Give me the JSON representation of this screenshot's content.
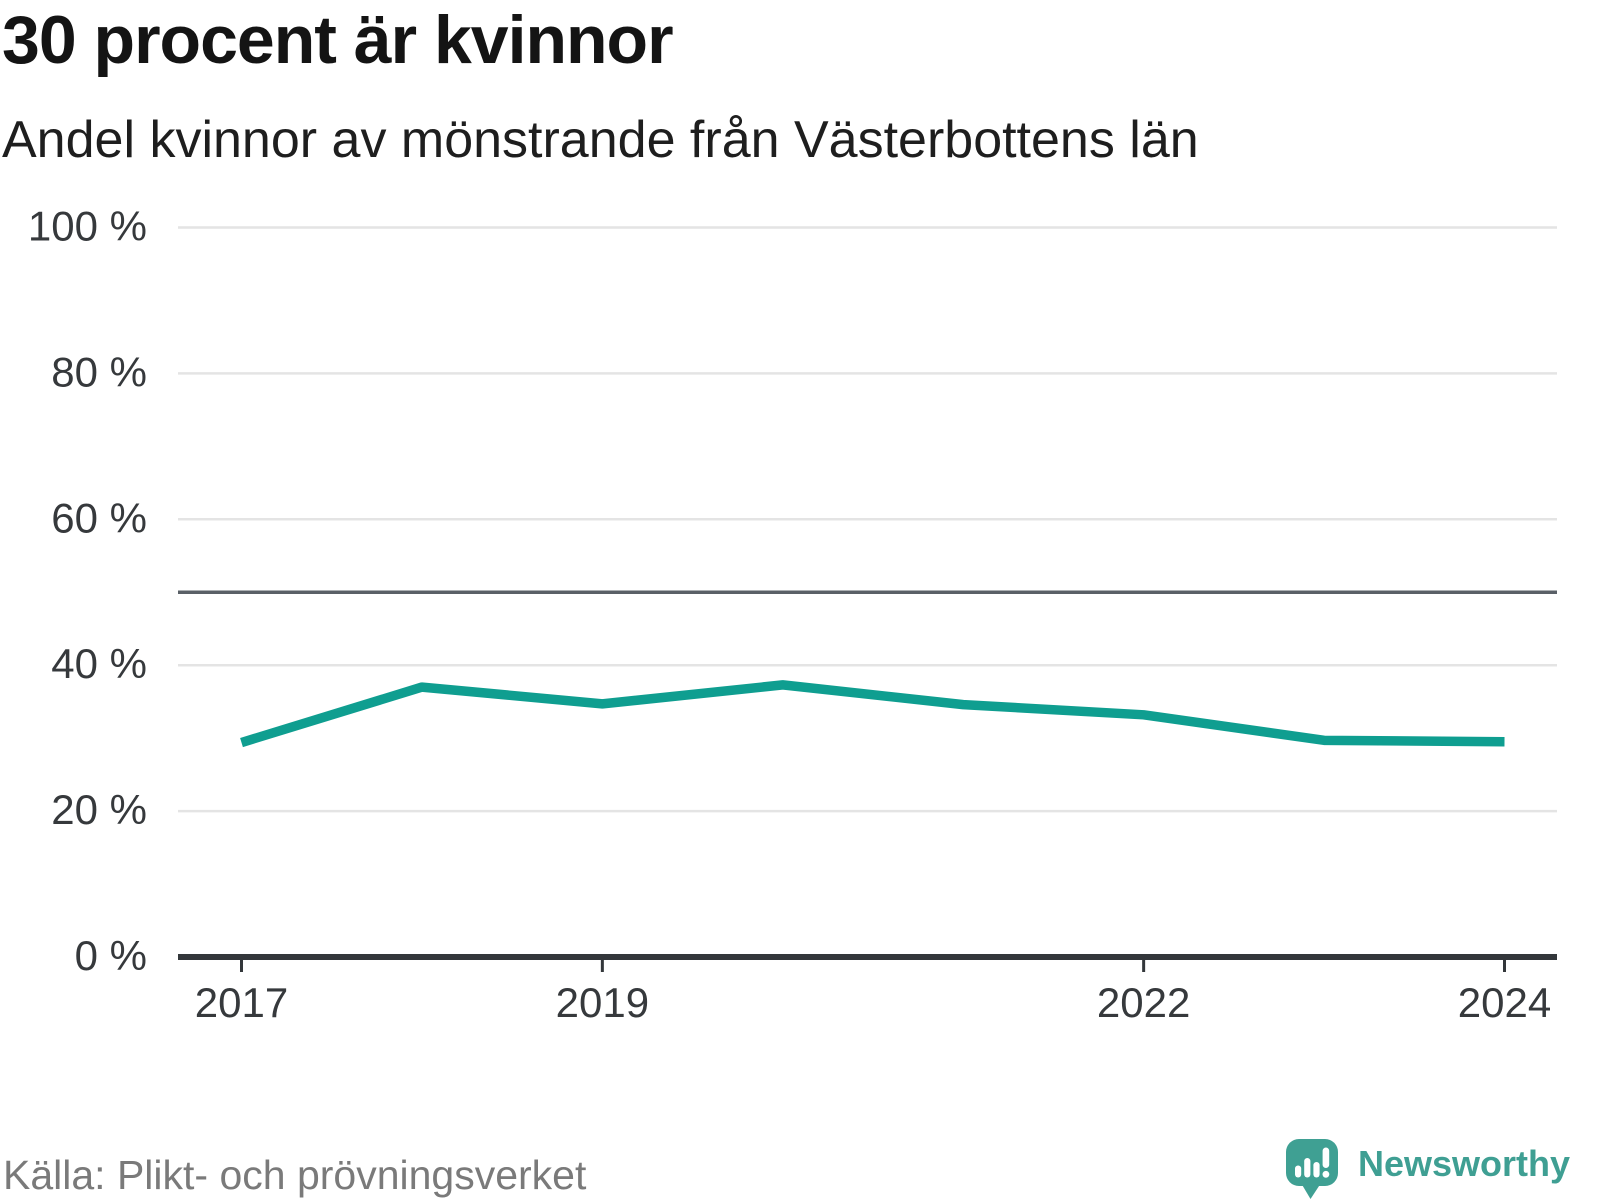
{
  "header": {
    "title": "30 procent är kvinnor",
    "subtitle": "Andel kvinnor av mönstrande från Västerbottens län"
  },
  "chart_data": {
    "type": "line",
    "title": "30 procent är kvinnor",
    "subtitle": "Andel kvinnor av mönstrande från Västerbottens län",
    "x": [
      2017,
      2018,
      2019,
      2020,
      2021,
      2022,
      2023,
      2024
    ],
    "series": [
      {
        "name": "Andel kvinnor av mönstrande",
        "values": [
          29.4,
          37.0,
          34.7,
          37.3,
          34.6,
          33.2,
          29.7,
          29.5
        ]
      }
    ],
    "unit": "%",
    "ylim": [
      0,
      100
    ],
    "yticks": [
      0,
      20,
      40,
      60,
      80,
      100
    ],
    "ytick_labels": [
      "0 %",
      "20 %",
      "40 %",
      "60 %",
      "80 %",
      "100 %"
    ],
    "xticks": [
      2017,
      2019,
      2022,
      2024
    ],
    "reference_line": 50,
    "grid": true,
    "legend": "none",
    "line_color": "#0f9e90",
    "grid_color": "#e4e4e4",
    "axis_color": "#33373b",
    "tick_color": "#36393c",
    "reference_color": "#5a6067"
  },
  "footer": {
    "source": "Källa: Plikt- och prövningsverket",
    "brand": "Newsworthy"
  },
  "colors": {
    "accent_teal": "#0f9e90",
    "brand_teal": "#3fa093",
    "title_text": "#141414",
    "muted_text": "#7a7a7a"
  }
}
